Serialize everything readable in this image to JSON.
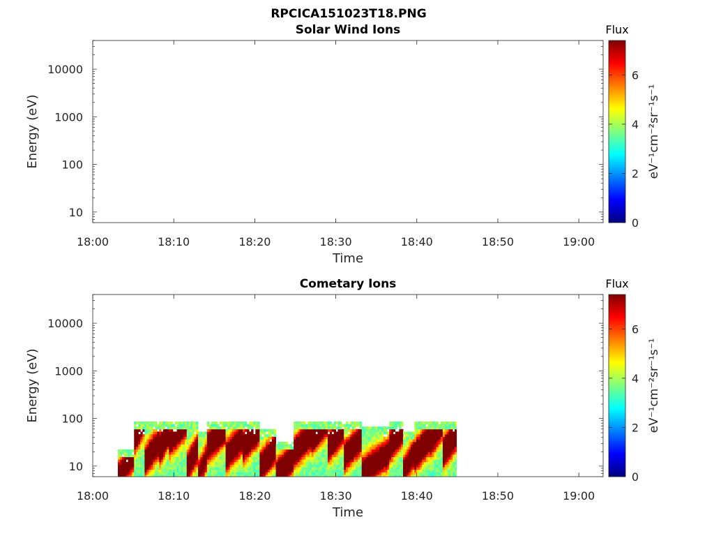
{
  "figure": {
    "title": "RPCICA151023T18.PNG"
  },
  "colormap": {
    "name": "jet",
    "stops": [
      "#00007f",
      "#0000ff",
      "#007fff",
      "#00ffff",
      "#7fff7f",
      "#ffff00",
      "#ff7f00",
      "#ff0000",
      "#7f0000"
    ]
  },
  "chart_data": [
    {
      "type": "heatmap",
      "title": "Solar Wind Ions",
      "xlabel": "Time",
      "ylabel": "Energy (eV)",
      "x_ticks": [
        "18:00",
        "18:10",
        "18:20",
        "18:30",
        "18:40",
        "18:50",
        "19:00"
      ],
      "xlim_minutes": [
        0,
        63
      ],
      "y_scale": "log",
      "y_ticks": [
        "10",
        "100",
        "1000",
        "10000"
      ],
      "y_tick_values": [
        10,
        100,
        1000,
        10000
      ],
      "ylim": [
        6,
        40000
      ],
      "colorbar": {
        "label": "Flux",
        "units": "eV⁻¹cm⁻²sr⁻¹s⁻¹",
        "ticks": [
          "0",
          "2",
          "4",
          "6"
        ],
        "tick_values": [
          0,
          2,
          4,
          6
        ],
        "range": [
          0,
          7.4
        ]
      },
      "segments": []
    },
    {
      "type": "heatmap",
      "title": "Cometary Ions",
      "xlabel": "Time",
      "ylabel": "Energy (eV)",
      "x_ticks": [
        "18:00",
        "18:10",
        "18:20",
        "18:30",
        "18:40",
        "18:50",
        "19:00"
      ],
      "xlim_minutes": [
        0,
        63
      ],
      "y_scale": "log",
      "y_ticks": [
        "10",
        "100",
        "1000",
        "10000"
      ],
      "y_tick_values": [
        10,
        100,
        1000,
        10000
      ],
      "ylim": [
        6,
        40000
      ],
      "colorbar": {
        "label": "Flux",
        "units": "eV⁻¹cm⁻²sr⁻¹s⁻¹",
        "ticks": [
          "0",
          "2",
          "4",
          "6"
        ],
        "tick_values": [
          0,
          2,
          4,
          6
        ],
        "range": [
          0,
          7.4
        ]
      },
      "segments": [
        {
          "start": 3.1,
          "end": 5.1,
          "emax": 20,
          "peak_e": 10,
          "peak": 5.2
        },
        {
          "start": 5.1,
          "end": 6.4,
          "emax": 80,
          "peak_e": 60,
          "peak": 6.5
        },
        {
          "start": 6.4,
          "end": 8.2,
          "emax": 80,
          "peak_e": 20,
          "peak": 6.1
        },
        {
          "start": 8.2,
          "end": 9.4,
          "emax": 80,
          "peak_e": 35,
          "peak": 7.0
        },
        {
          "start": 9.4,
          "end": 11.6,
          "emax": 80,
          "peak_e": 50,
          "peak": 5.6
        },
        {
          "start": 11.6,
          "end": 13.0,
          "emax": 80,
          "peak_e": 15,
          "peak": 5.8
        },
        {
          "start": 13.0,
          "end": 14.1,
          "emax": 50,
          "peak_e": 10,
          "peak": 4.6
        },
        {
          "start": 14.1,
          "end": 16.4,
          "emax": 80,
          "peak_e": 40,
          "peak": 6.7
        },
        {
          "start": 16.4,
          "end": 18.5,
          "emax": 80,
          "peak_e": 25,
          "peak": 6.2
        },
        {
          "start": 18.5,
          "end": 20.6,
          "emax": 80,
          "peak_e": 40,
          "peak": 6.9
        },
        {
          "start": 20.6,
          "end": 22.6,
          "emax": 55,
          "peak_e": 15,
          "peak": 6.3
        },
        {
          "start": 22.6,
          "end": 24.8,
          "emax": 30,
          "peak_e": 10,
          "peak": 6.8
        },
        {
          "start": 24.8,
          "end": 27.0,
          "emax": 80,
          "peak_e": 30,
          "peak": 6.6
        },
        {
          "start": 27.0,
          "end": 29.0,
          "emax": 80,
          "peak_e": 60,
          "peak": 7.1
        },
        {
          "start": 29.0,
          "end": 31.0,
          "emax": 80,
          "peak_e": 40,
          "peak": 6.5
        },
        {
          "start": 31.0,
          "end": 33.2,
          "emax": 80,
          "peak_e": 25,
          "peak": 6.0
        },
        {
          "start": 33.2,
          "end": 36.6,
          "emax": 60,
          "peak_e": 12,
          "peak": 5.9
        },
        {
          "start": 36.6,
          "end": 38.3,
          "emax": 80,
          "peak_e": 40,
          "peak": 6.8
        },
        {
          "start": 38.3,
          "end": 39.7,
          "emax": 50,
          "peak_e": 12,
          "peak": 5.5
        },
        {
          "start": 39.7,
          "end": 41.6,
          "emax": 80,
          "peak_e": 25,
          "peak": 6.9
        },
        {
          "start": 41.6,
          "end": 43.2,
          "emax": 80,
          "peak_e": 50,
          "peak": 6.1
        },
        {
          "start": 43.2,
          "end": 44.9,
          "emax": 80,
          "peak_e": 30,
          "peak": 6.7
        }
      ]
    }
  ]
}
